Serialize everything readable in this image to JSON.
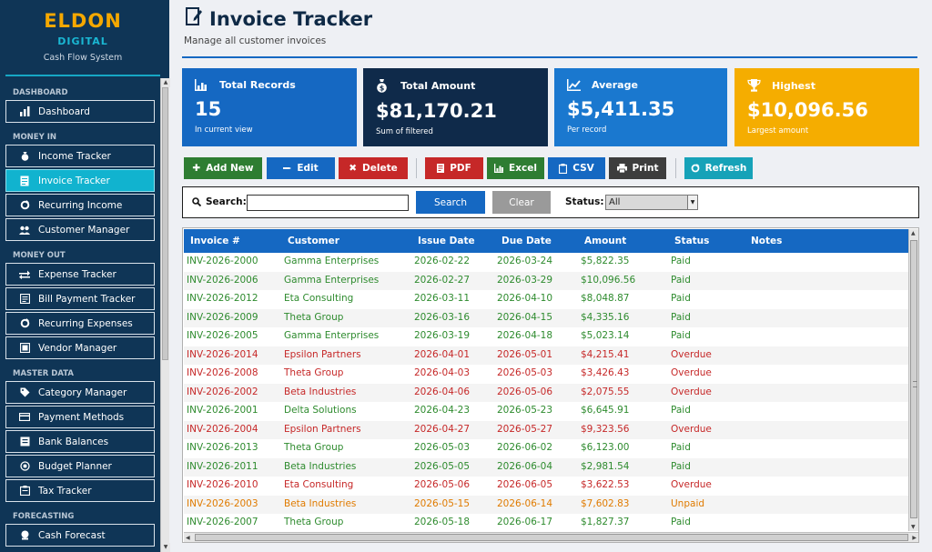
{
  "brand": {
    "name": "ELDON",
    "sub": "DIGITAL",
    "tagline": "Cash Flow System"
  },
  "sidebar": {
    "sections": {
      "dashboard": "DASHBOARD",
      "money_in": "MONEY IN",
      "money_out": "MONEY OUT",
      "master_data": "MASTER DATA",
      "forecasting": "FORECASTING"
    },
    "items": [
      {
        "label": "Dashboard",
        "icon": "bar-chart-icon"
      },
      {
        "label": "Income Tracker",
        "icon": "money-bag-icon"
      },
      {
        "label": "Invoice Tracker",
        "icon": "document-icon",
        "active": true
      },
      {
        "label": "Recurring Income",
        "icon": "refresh-icon"
      },
      {
        "label": "Customer Manager",
        "icon": "people-icon"
      },
      {
        "label": "Expense Tracker",
        "icon": "arrows-icon"
      },
      {
        "label": "Bill Payment Tracker",
        "icon": "bill-icon"
      },
      {
        "label": "Recurring Expenses",
        "icon": "refresh-icon"
      },
      {
        "label": "Vendor Manager",
        "icon": "vendor-icon"
      },
      {
        "label": "Category Manager",
        "icon": "tag-icon"
      },
      {
        "label": "Payment Methods",
        "icon": "card-icon"
      },
      {
        "label": "Bank Balances",
        "icon": "bank-icon"
      },
      {
        "label": "Budget Planner",
        "icon": "target-icon"
      },
      {
        "label": "Tax Tracker",
        "icon": "clipboard-icon"
      },
      {
        "label": "Cash Forecast",
        "icon": "crystal-ball-icon"
      }
    ]
  },
  "header": {
    "title": "Invoice Tracker",
    "subtitle": "Manage all customer invoices"
  },
  "cards": [
    {
      "title": "Total Records",
      "value": "15",
      "sub": "In current view",
      "color": "#1568c2",
      "icon": "bar-chart-icon"
    },
    {
      "title": "Total Amount",
      "value": "$81,170.21",
      "sub": "Sum of filtered",
      "color": "#0f2a4a",
      "icon": "money-bag-icon"
    },
    {
      "title": "Average",
      "value": "$5,411.35",
      "sub": "Per record",
      "color": "#1a78cf",
      "icon": "trend-icon"
    },
    {
      "title": "Highest",
      "value": "$10,096.56",
      "sub": "Largest amount",
      "color": "#f5ad00",
      "icon": "trophy-icon"
    }
  ],
  "toolbar": {
    "add": "Add New",
    "edit": "Edit",
    "delete": "Delete",
    "pdf": "PDF",
    "excel": "Excel",
    "csv": "CSV",
    "print": "Print",
    "refresh": "Refresh"
  },
  "filter": {
    "search_label": "Search:",
    "search_value": "",
    "search_button": "Search",
    "clear_button": "Clear",
    "status_label": "Status:",
    "status_value": "All"
  },
  "table": {
    "columns": [
      "Invoice #",
      "Customer",
      "Issue Date",
      "Due Date",
      "Amount",
      "Status",
      "Notes"
    ],
    "status_colors": {
      "Paid": "#2e8b2e",
      "Overdue": "#c62828",
      "Unpaid": "#e07b00"
    },
    "rows": [
      [
        "INV-2026-2000",
        "Gamma Enterprises",
        "2026-02-22",
        "2026-03-24",
        "$5,822.35",
        "Paid",
        ""
      ],
      [
        "INV-2026-2006",
        "Gamma Enterprises",
        "2026-02-27",
        "2026-03-29",
        "$10,096.56",
        "Paid",
        ""
      ],
      [
        "INV-2026-2012",
        "Eta Consulting",
        "2026-03-11",
        "2026-04-10",
        "$8,048.87",
        "Paid",
        ""
      ],
      [
        "INV-2026-2009",
        "Theta Group",
        "2026-03-16",
        "2026-04-15",
        "$4,335.16",
        "Paid",
        ""
      ],
      [
        "INV-2026-2005",
        "Gamma Enterprises",
        "2026-03-19",
        "2026-04-18",
        "$5,023.14",
        "Paid",
        ""
      ],
      [
        "INV-2026-2014",
        "Epsilon Partners",
        "2026-04-01",
        "2026-05-01",
        "$4,215.41",
        "Overdue",
        ""
      ],
      [
        "INV-2026-2008",
        "Theta Group",
        "2026-04-03",
        "2026-05-03",
        "$3,426.43",
        "Overdue",
        ""
      ],
      [
        "INV-2026-2002",
        "Beta Industries",
        "2026-04-06",
        "2026-05-06",
        "$2,075.55",
        "Overdue",
        ""
      ],
      [
        "INV-2026-2001",
        "Delta Solutions",
        "2026-04-23",
        "2026-05-23",
        "$6,645.91",
        "Paid",
        ""
      ],
      [
        "INV-2026-2004",
        "Epsilon Partners",
        "2026-04-27",
        "2026-05-27",
        "$9,323.56",
        "Overdue",
        ""
      ],
      [
        "INV-2026-2013",
        "Theta Group",
        "2026-05-03",
        "2026-06-02",
        "$6,123.00",
        "Paid",
        ""
      ],
      [
        "INV-2026-2011",
        "Beta Industries",
        "2026-05-05",
        "2026-06-04",
        "$2,981.54",
        "Paid",
        ""
      ],
      [
        "INV-2026-2010",
        "Eta Consulting",
        "2026-05-06",
        "2026-06-05",
        "$3,622.53",
        "Overdue",
        ""
      ],
      [
        "INV-2026-2003",
        "Beta Industries",
        "2026-05-15",
        "2026-06-14",
        "$7,602.83",
        "Unpaid",
        ""
      ],
      [
        "INV-2026-2007",
        "Theta Group",
        "2026-05-18",
        "2026-06-17",
        "$1,827.37",
        "Paid",
        ""
      ]
    ]
  }
}
